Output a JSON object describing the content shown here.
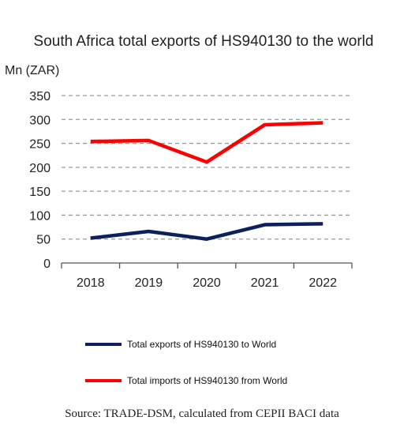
{
  "chart_data": {
    "type": "line",
    "title": "South Africa total exports of HS940130 to the world",
    "unit_label": "Mn (ZAR)",
    "xlabel": "",
    "ylabel": "Mn (ZAR)",
    "categories": [
      "2018",
      "2019",
      "2020",
      "2021",
      "2022"
    ],
    "ylim": [
      0,
      350
    ],
    "yticks": [
      0,
      50,
      100,
      150,
      200,
      250,
      300,
      350
    ],
    "grid": true,
    "legend_position": "bottom",
    "series": [
      {
        "name": "Total exports of HS940130 to World",
        "color": "#0d1f5c",
        "values": [
          52,
          66,
          50,
          80,
          82
        ]
      },
      {
        "name": "Total imports of HS940130 from World",
        "color": "#ff0000",
        "values": [
          254,
          256,
          211,
          289,
          293
        ]
      }
    ]
  },
  "source": "Source: TRADE-DSM, calculated from CEPII BACI data"
}
